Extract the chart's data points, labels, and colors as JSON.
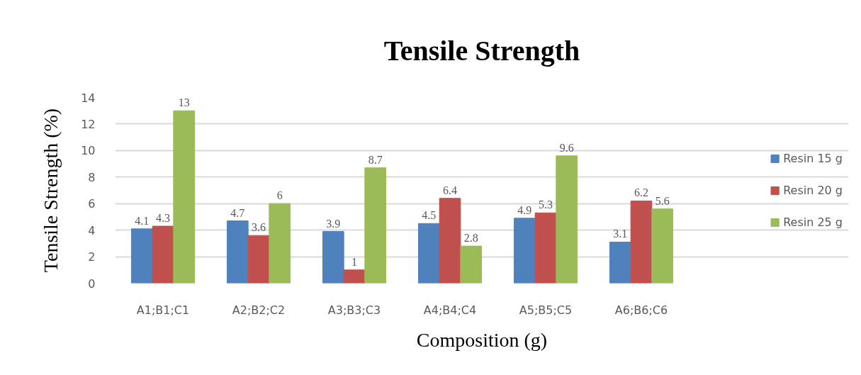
{
  "chart_data": {
    "type": "bar",
    "title": "Tensile Strength",
    "xlabel": "Composition (g)",
    "ylabel": "Tensile Strength (%)",
    "categories": [
      "A1;B1;C1",
      "A2;B2;C2",
      "A3;B3;C3",
      "A4;B4;C4",
      "A5;B5;C5",
      "A6;B6;C6"
    ],
    "series": [
      {
        "name": "Resin 15 g",
        "color": "#4f81bd",
        "values": [
          4.1,
          4.7,
          3.9,
          4.5,
          4.9,
          3.1
        ]
      },
      {
        "name": "Resin 20 g",
        "color": "#c0504d",
        "values": [
          4.3,
          3.6,
          1,
          6.4,
          5.3,
          6.2
        ]
      },
      {
        "name": "Resin 25 g",
        "color": "#9bbb59",
        "values": [
          13,
          6,
          8.7,
          2.8,
          9.6,
          5.6
        ]
      }
    ],
    "ylim": [
      0,
      14
    ],
    "yticks": [
      0,
      2,
      4,
      6,
      8,
      10,
      12,
      14
    ],
    "grid": "y",
    "legend": "right",
    "data_labels": true
  }
}
